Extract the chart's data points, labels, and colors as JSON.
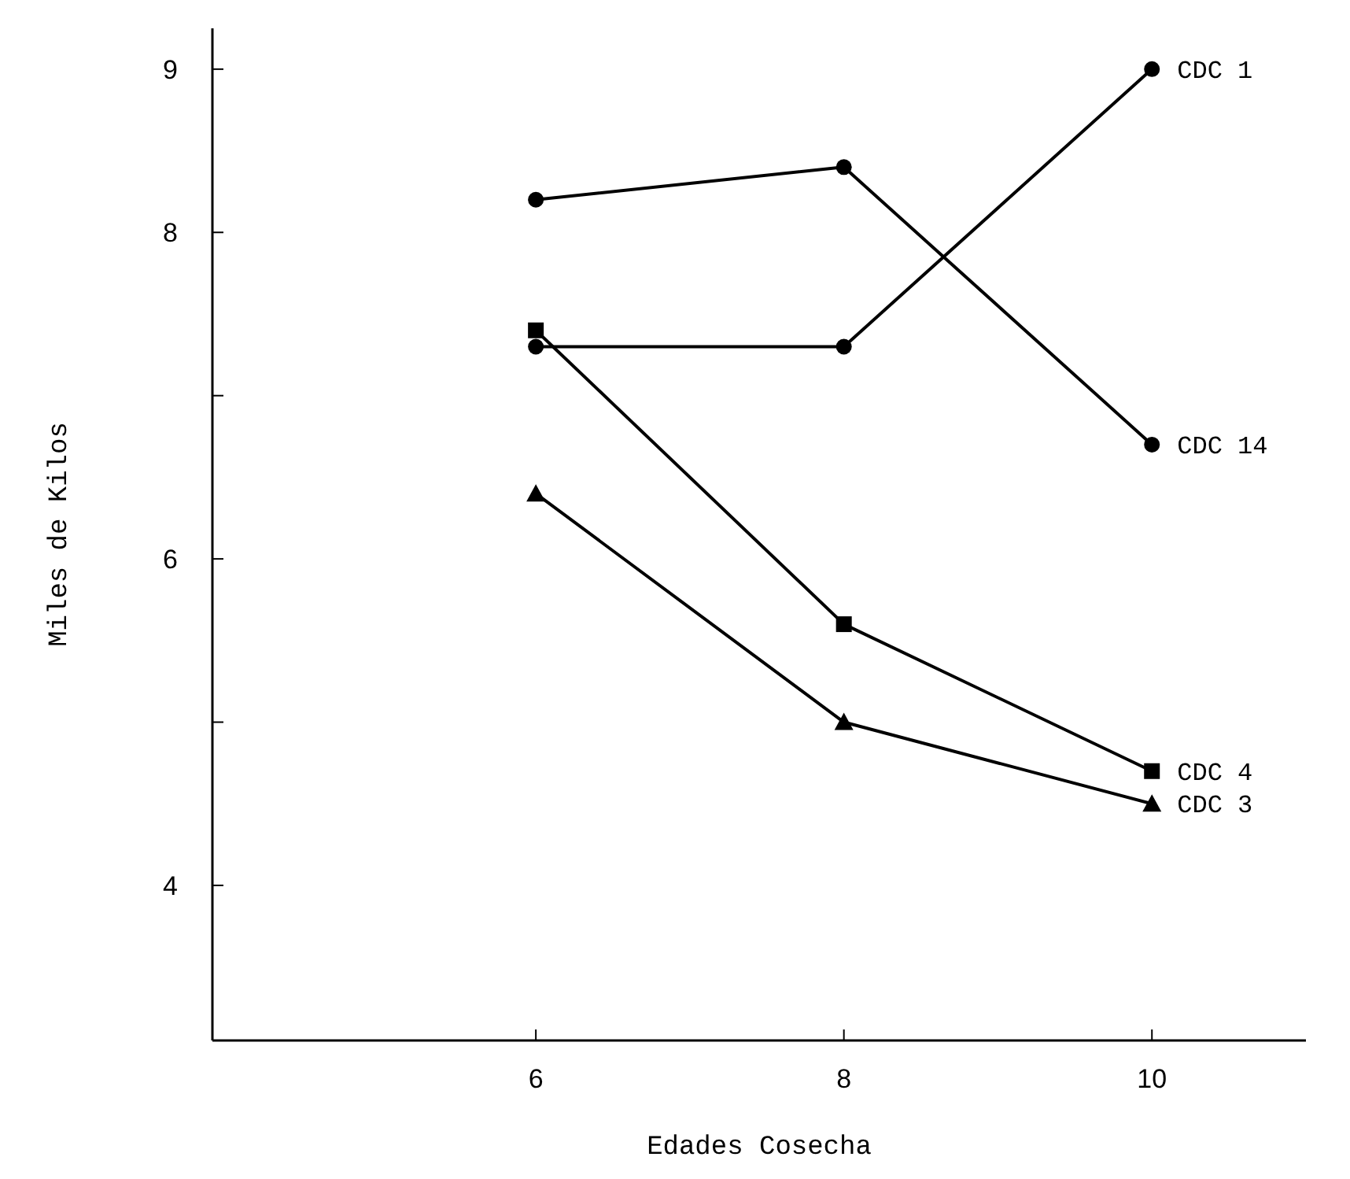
{
  "chart_data": {
    "type": "line",
    "xlabel": "Edades Cosecha",
    "ylabel": "Miles de Kilos",
    "x": [
      6,
      8,
      10
    ],
    "xlim": [
      3.9,
      11
    ],
    "xticks": [
      6,
      8,
      10
    ],
    "ylim": [
      3.05,
      9.25
    ],
    "yticks": [
      4,
      {
        "value": 5,
        "label": null
      },
      6,
      {
        "value": 7,
        "label": null
      },
      8,
      9
    ],
    "grid": false,
    "legend": false,
    "line_style": "solid",
    "series": [
      {
        "name": "CDC 1",
        "color": "#000000",
        "marker": "circle",
        "values": [
          7.3,
          7.3,
          9.0
        ]
      },
      {
        "name": "CDC 14",
        "color": "#000000",
        "marker": "circle",
        "values": [
          8.2,
          8.4,
          6.7
        ]
      },
      {
        "name": "CDC 4",
        "color": "#000000",
        "marker": "square",
        "values": [
          7.4,
          5.6,
          4.7
        ]
      },
      {
        "name": "CDC 3",
        "color": "#000000",
        "marker": "triangle",
        "values": [
          6.4,
          5.0,
          4.5
        ]
      }
    ]
  }
}
